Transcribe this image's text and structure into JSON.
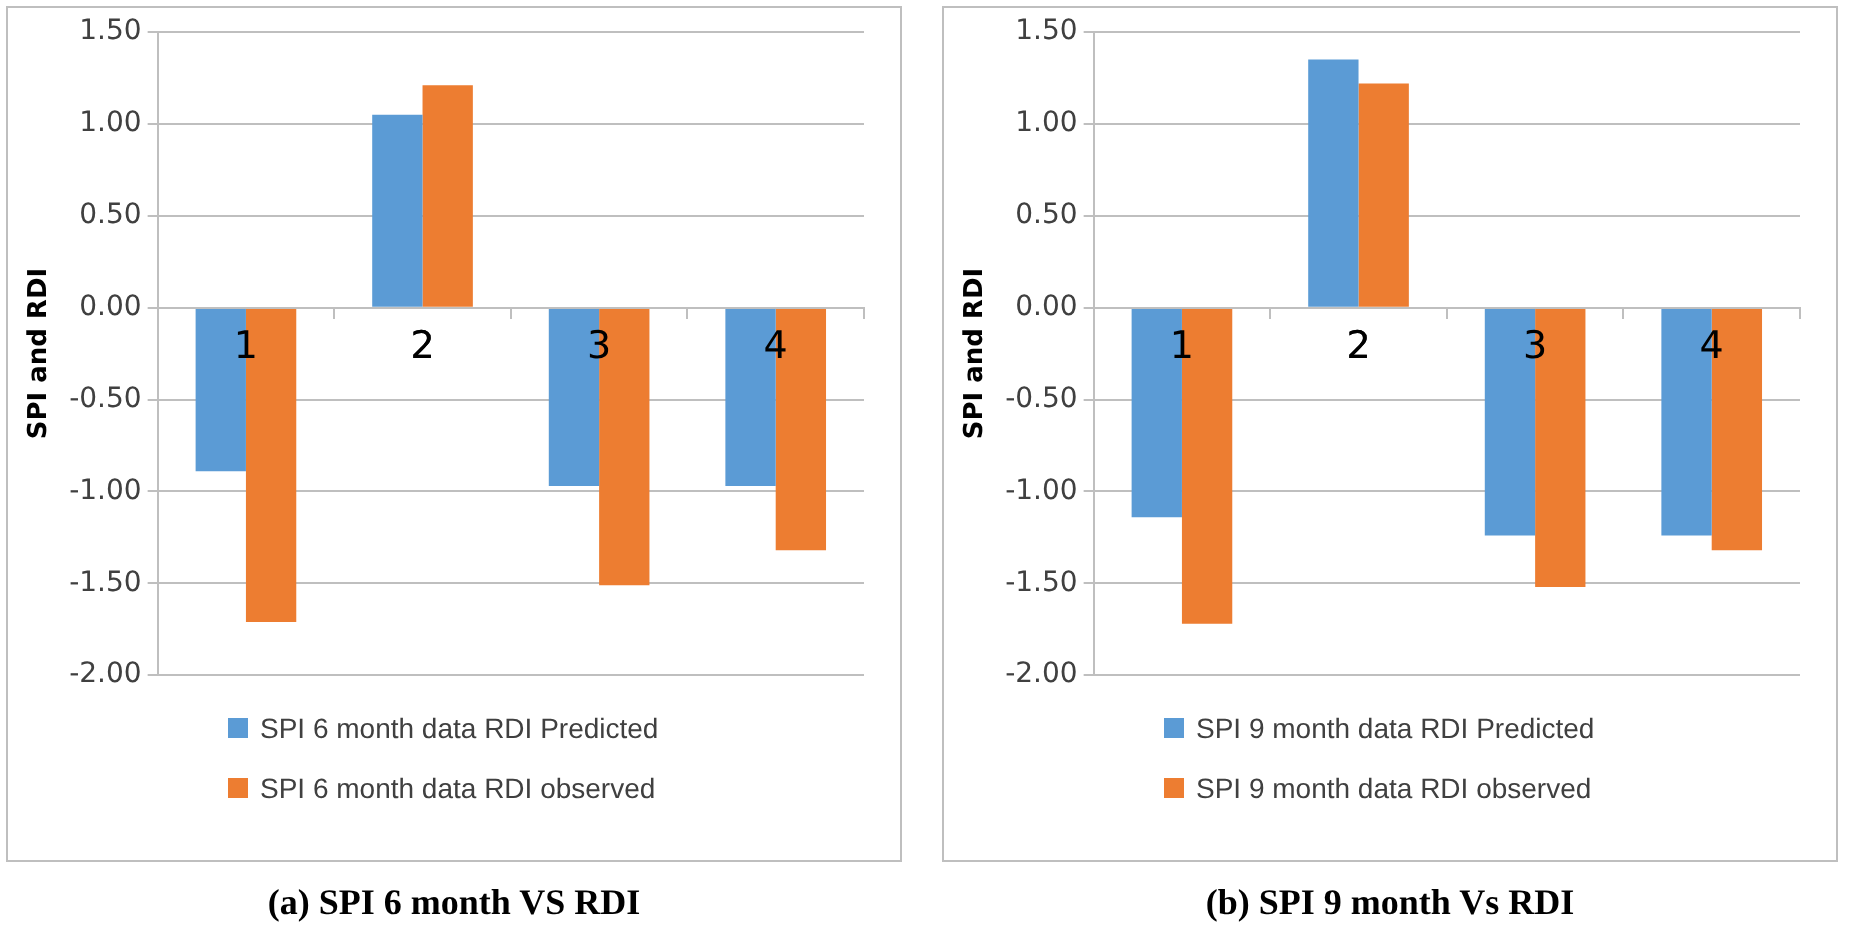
{
  "chart_data": [
    {
      "type": "bar",
      "categories": [
        "1",
        "2",
        "3",
        "4"
      ],
      "ylabel": "SPI and RDI",
      "ylim": [
        -2,
        1.5
      ],
      "yticks": [
        {
          "value": -2,
          "label": "-2.00"
        },
        {
          "value": -1.5,
          "label": "-1.50"
        },
        {
          "value": -1,
          "label": "-1.00"
        },
        {
          "value": -0.5,
          "label": "-0.50"
        },
        {
          "value": 0,
          "label": "0.00"
        },
        {
          "value": 0.5,
          "label": "0.50"
        },
        {
          "value": 1,
          "label": "1.00"
        },
        {
          "value": 1.5,
          "label": "1.50"
        }
      ],
      "grid": "y",
      "legend": "bottom",
      "annotations": [
        "(a) SPI 6 month VS RDI"
      ],
      "series": [
        {
          "name": "SPI 6 month data RDI Predicted",
          "color": "#5b9bd5",
          "values": [
            -0.89,
            1.05,
            -0.97,
            -0.97
          ]
        },
        {
          "name": "SPI 6 month data RDI observed",
          "color": "#ed7d31",
          "values": [
            -1.71,
            1.21,
            -1.51,
            -1.32
          ]
        }
      ]
    },
    {
      "type": "bar",
      "categories": [
        "1",
        "2",
        "3",
        "4"
      ],
      "ylabel": "SPI and RDI",
      "ylim": [
        -2,
        1.5
      ],
      "yticks": [
        {
          "value": -2,
          "label": "-2.00"
        },
        {
          "value": -1.5,
          "label": "-1.50"
        },
        {
          "value": -1,
          "label": "-1.00"
        },
        {
          "value": -0.5,
          "label": "-0.50"
        },
        {
          "value": 0,
          "label": "0.00"
        },
        {
          "value": 0.5,
          "label": "0.50"
        },
        {
          "value": 1,
          "label": "1.00"
        },
        {
          "value": 1.5,
          "label": "1.50"
        }
      ],
      "grid": "y",
      "legend": "bottom",
      "annotations": [
        "(b) SPI 9 month Vs RDI"
      ],
      "series": [
        {
          "name": "SPI 9 month data RDI Predicted",
          "color": "#5b9bd5",
          "values": [
            -1.14,
            1.35,
            -1.24,
            -1.24
          ]
        },
        {
          "name": "SPI 9 month data RDI observed",
          "color": "#ed7d31",
          "values": [
            -1.72,
            1.22,
            -1.52,
            -1.32
          ]
        }
      ]
    }
  ]
}
